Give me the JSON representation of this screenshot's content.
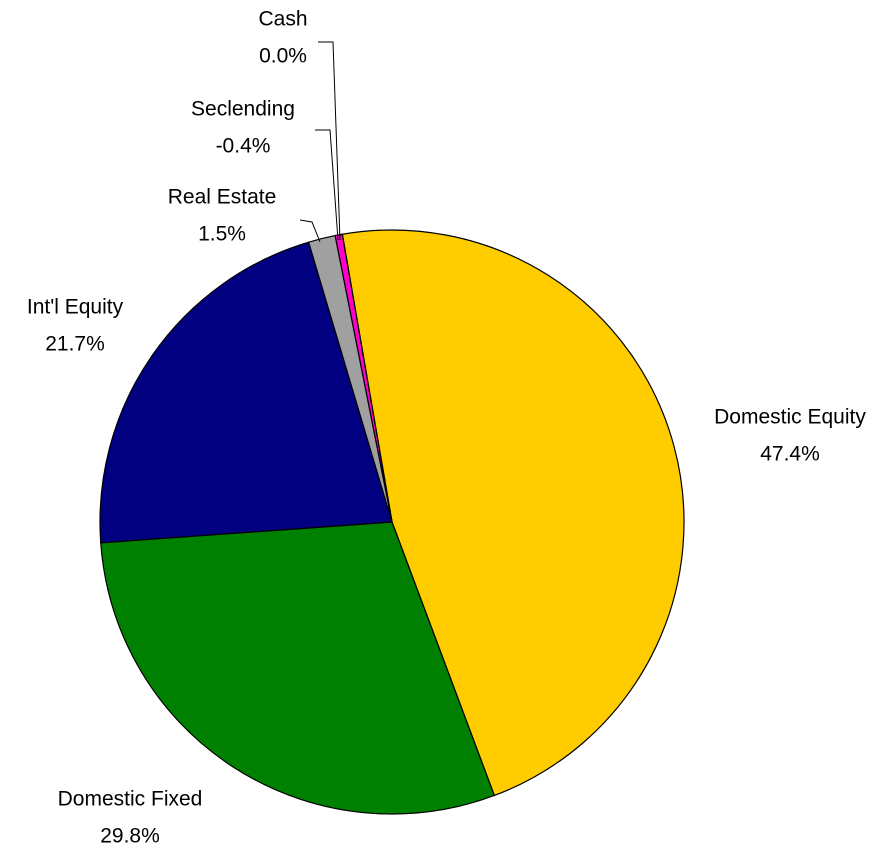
{
  "chart_data": {
    "type": "pie",
    "categories": [
      "Domestic Equity",
      "Domestic Fixed",
      "Int'l Equity",
      "Real Estate",
      "Seclending",
      "Cash"
    ],
    "values": [
      47.4,
      29.8,
      21.7,
      1.5,
      -0.4,
      0.0
    ],
    "value_labels": [
      "47.4%",
      "29.8%",
      "21.7%",
      "1.5%",
      "-0.4%",
      "0.0%"
    ],
    "colors": [
      "#ffcc00",
      "#008000",
      "#000080",
      "#a0a0a0",
      "#ff00cc",
      "#00ccff"
    ]
  }
}
